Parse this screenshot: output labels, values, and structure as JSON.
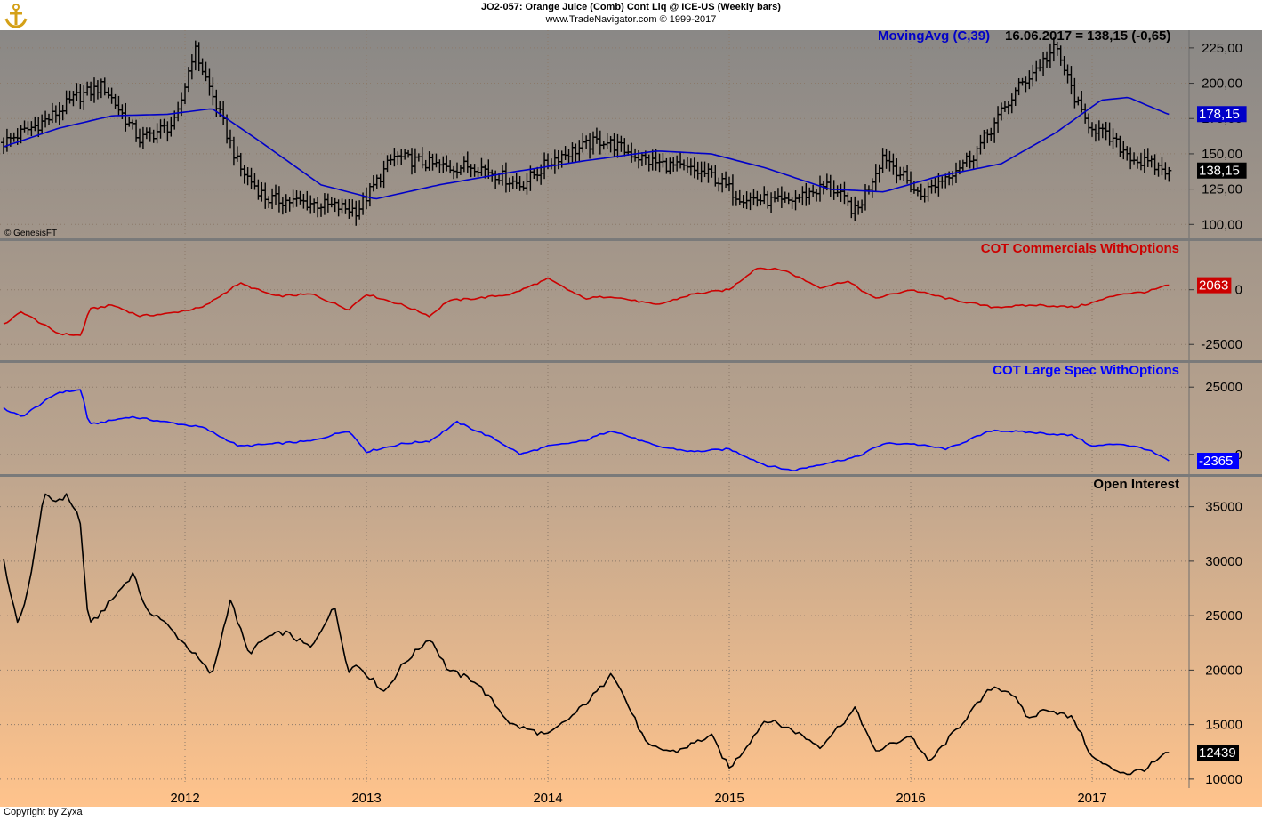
{
  "header": {
    "title": "JO2-057:  Orange Juice (Comb) Cont Liq @ ICE-US  (Weekly bars)",
    "subtitle": "www.TradeNavigator.com © 1999-2017"
  },
  "footer": {
    "copyright": "Copyright by Zyxa"
  },
  "colors": {
    "price": "#000000",
    "moving_avg": "#0000c8",
    "commercials": "#cc0000",
    "large_spec": "#0000ff",
    "open_interest": "#000000",
    "separator": "#7a7a7a",
    "gridline": "#8c7a6a"
  },
  "chart_data": [
    {
      "id": "price",
      "type": "ohlc",
      "annotation": "MovingAvg (C,39)",
      "readout": "16.06.2017 = 138,15 (-0,65)",
      "watermark": "© GenesisFT",
      "ylim": [
        92,
        235
      ],
      "yticks": [
        "225,00",
        "200,00",
        "175,00",
        "150,00",
        "125,00",
        "100,00"
      ],
      "ytick_values": [
        225,
        200,
        175,
        150,
        125,
        100
      ],
      "last_close_label": "138,15",
      "last_close": 138.15,
      "ma_label": "178,15",
      "ma_last": 178.15,
      "series": [
        {
          "name": "Close",
          "x": [
            2011.0,
            2011.25,
            2011.4,
            2011.55,
            2011.75,
            2011.95,
            2012.05,
            2012.2,
            2012.3,
            2012.45,
            2012.7,
            2012.95,
            2013.15,
            2013.45,
            2013.6,
            2013.85,
            2014.05,
            2014.3,
            2014.55,
            2014.9,
            2015.05,
            2015.3,
            2015.55,
            2015.7,
            2015.85,
            2016.05,
            2016.35,
            2016.6,
            2016.8,
            2016.95,
            2017.1,
            2017.25,
            2017.42
          ],
          "values": [
            158,
            175,
            190,
            198,
            160,
            172,
            225,
            175,
            140,
            118,
            115,
            110,
            148,
            140,
            142,
            128,
            148,
            160,
            145,
            135,
            120,
            115,
            128,
            108,
            150,
            120,
            150,
            198,
            225,
            175,
            160,
            145,
            138
          ]
        },
        {
          "name": "MovingAvg (C,39)",
          "x": [
            2011.0,
            2011.3,
            2011.6,
            2011.9,
            2012.15,
            2012.4,
            2012.75,
            2013.05,
            2013.4,
            2013.8,
            2014.2,
            2014.6,
            2014.9,
            2015.2,
            2015.55,
            2015.85,
            2016.15,
            2016.5,
            2016.8,
            2017.05,
            2017.2,
            2017.42
          ],
          "values": [
            155,
            168,
            177,
            178,
            182,
            160,
            128,
            118,
            128,
            137,
            145,
            152,
            150,
            140,
            125,
            123,
            134,
            143,
            165,
            188,
            190,
            178
          ]
        }
      ]
    },
    {
      "id": "commercials",
      "type": "line",
      "title": "COT Commercials WithOptions",
      "ylim": [
        -31000,
        21000
      ],
      "yticks": [
        "0",
        "-25000"
      ],
      "ytick_values": [
        0,
        -25000
      ],
      "last_label": "2063",
      "last_value": 2063,
      "x": [
        2011.0,
        2011.1,
        2011.3,
        2011.43,
        2011.47,
        2011.6,
        2011.75,
        2011.9,
        2012.1,
        2012.3,
        2012.5,
        2012.7,
        2012.9,
        2013.0,
        2013.2,
        2013.35,
        2013.45,
        2013.6,
        2013.8,
        2014.0,
        2014.2,
        2014.35,
        2014.6,
        2014.8,
        2015.0,
        2015.15,
        2015.3,
        2015.5,
        2015.65,
        2015.8,
        2016.0,
        2016.2,
        2016.45,
        2016.7,
        2016.9,
        2017.0,
        2017.15,
        2017.3,
        2017.42
      ],
      "values": [
        -16000,
        -10000,
        -20000,
        -21000,
        -9000,
        -7000,
        -12000,
        -11000,
        -8000,
        3000,
        -3000,
        -2000,
        -9000,
        -2000,
        -7000,
        -12000,
        -5000,
        -4000,
        -2000,
        5000,
        -4000,
        -3000,
        -7000,
        -2000,
        0,
        10000,
        9000,
        1000,
        4000,
        -4000,
        0,
        -4000,
        -8000,
        -7000,
        -8000,
        -6000,
        -2000,
        -1000,
        2063
      ]
    },
    {
      "id": "large_spec",
      "type": "line",
      "title": "COT Large Spec WithOptions",
      "ylim": [
        -6000,
        33000
      ],
      "yticks": [
        "25000",
        "0"
      ],
      "ytick_values": [
        25000,
        0
      ],
      "last_label": "-2365",
      "last_value": -2365,
      "x": [
        2011.0,
        2011.1,
        2011.3,
        2011.43,
        2011.47,
        2011.7,
        2011.9,
        2012.1,
        2012.3,
        2012.5,
        2012.7,
        2012.9,
        2013.0,
        2013.2,
        2013.35,
        2013.5,
        2013.7,
        2013.85,
        2014.0,
        2014.2,
        2014.35,
        2014.6,
        2014.8,
        2015.0,
        2015.2,
        2015.35,
        2015.55,
        2015.7,
        2015.85,
        2016.0,
        2016.2,
        2016.45,
        2016.7,
        2016.9,
        2017.0,
        2017.15,
        2017.3,
        2017.42
      ],
      "values": [
        17000,
        14000,
        23000,
        24000,
        11000,
        14000,
        12000,
        10000,
        3000,
        4000,
        5000,
        9000,
        1000,
        4000,
        5000,
        12000,
        6000,
        0,
        3000,
        5000,
        9000,
        3000,
        1000,
        2000,
        -4000,
        -6000,
        -3000,
        -1000,
        4000,
        4000,
        2000,
        9000,
        8000,
        7000,
        3000,
        4000,
        2000,
        -2365
      ]
    },
    {
      "id": "open_interest",
      "type": "line",
      "title": "Open Interest",
      "ylim": [
        9500,
        37500
      ],
      "yticks": [
        "35000",
        "30000",
        "25000",
        "20000",
        "15000",
        "10000"
      ],
      "ytick_values": [
        35000,
        30000,
        25000,
        20000,
        15000,
        10000
      ],
      "last_label": "12439",
      "last_value": 12439,
      "x": [
        2011.0,
        2011.08,
        2011.15,
        2011.22,
        2011.28,
        2011.35,
        2011.42,
        2011.47,
        2011.6,
        2011.72,
        2011.78,
        2011.85,
        2012.05,
        2012.15,
        2012.25,
        2012.35,
        2012.45,
        2012.55,
        2012.7,
        2012.82,
        2012.9,
        2012.95,
        2013.1,
        2013.2,
        2013.35,
        2013.45,
        2013.6,
        2013.8,
        2014.0,
        2014.15,
        2014.3,
        2014.35,
        2014.55,
        2014.7,
        2014.9,
        2015.0,
        2015.05,
        2015.2,
        2015.35,
        2015.5,
        2015.7,
        2015.8,
        2016.0,
        2016.1,
        2016.25,
        2016.45,
        2016.55,
        2016.65,
        2016.75,
        2016.9,
        2017.0,
        2017.1,
        2017.2,
        2017.3,
        2017.42
      ],
      "values": [
        30000,
        24000,
        28500,
        36000,
        35500,
        36000,
        34000,
        24000,
        26500,
        29000,
        25500,
        25000,
        21500,
        19500,
        26500,
        21500,
        23000,
        23500,
        22000,
        26000,
        20000,
        20500,
        18000,
        20500,
        23000,
        20000,
        19000,
        15000,
        14000,
        16000,
        18500,
        20000,
        13000,
        12500,
        14000,
        11000,
        12000,
        15500,
        14500,
        13000,
        16500,
        12500,
        14000,
        11500,
        14500,
        18500,
        18000,
        15500,
        16500,
        15500,
        12000,
        11000,
        10500,
        11000,
        12439
      ]
    }
  ],
  "x_axis": {
    "labels": [
      "2012",
      "2013",
      "2014",
      "2015",
      "2016",
      "2017"
    ],
    "values": [
      2012,
      2013,
      2014,
      2015,
      2016,
      2017
    ],
    "range": [
      2011.0,
      2017.5
    ]
  }
}
